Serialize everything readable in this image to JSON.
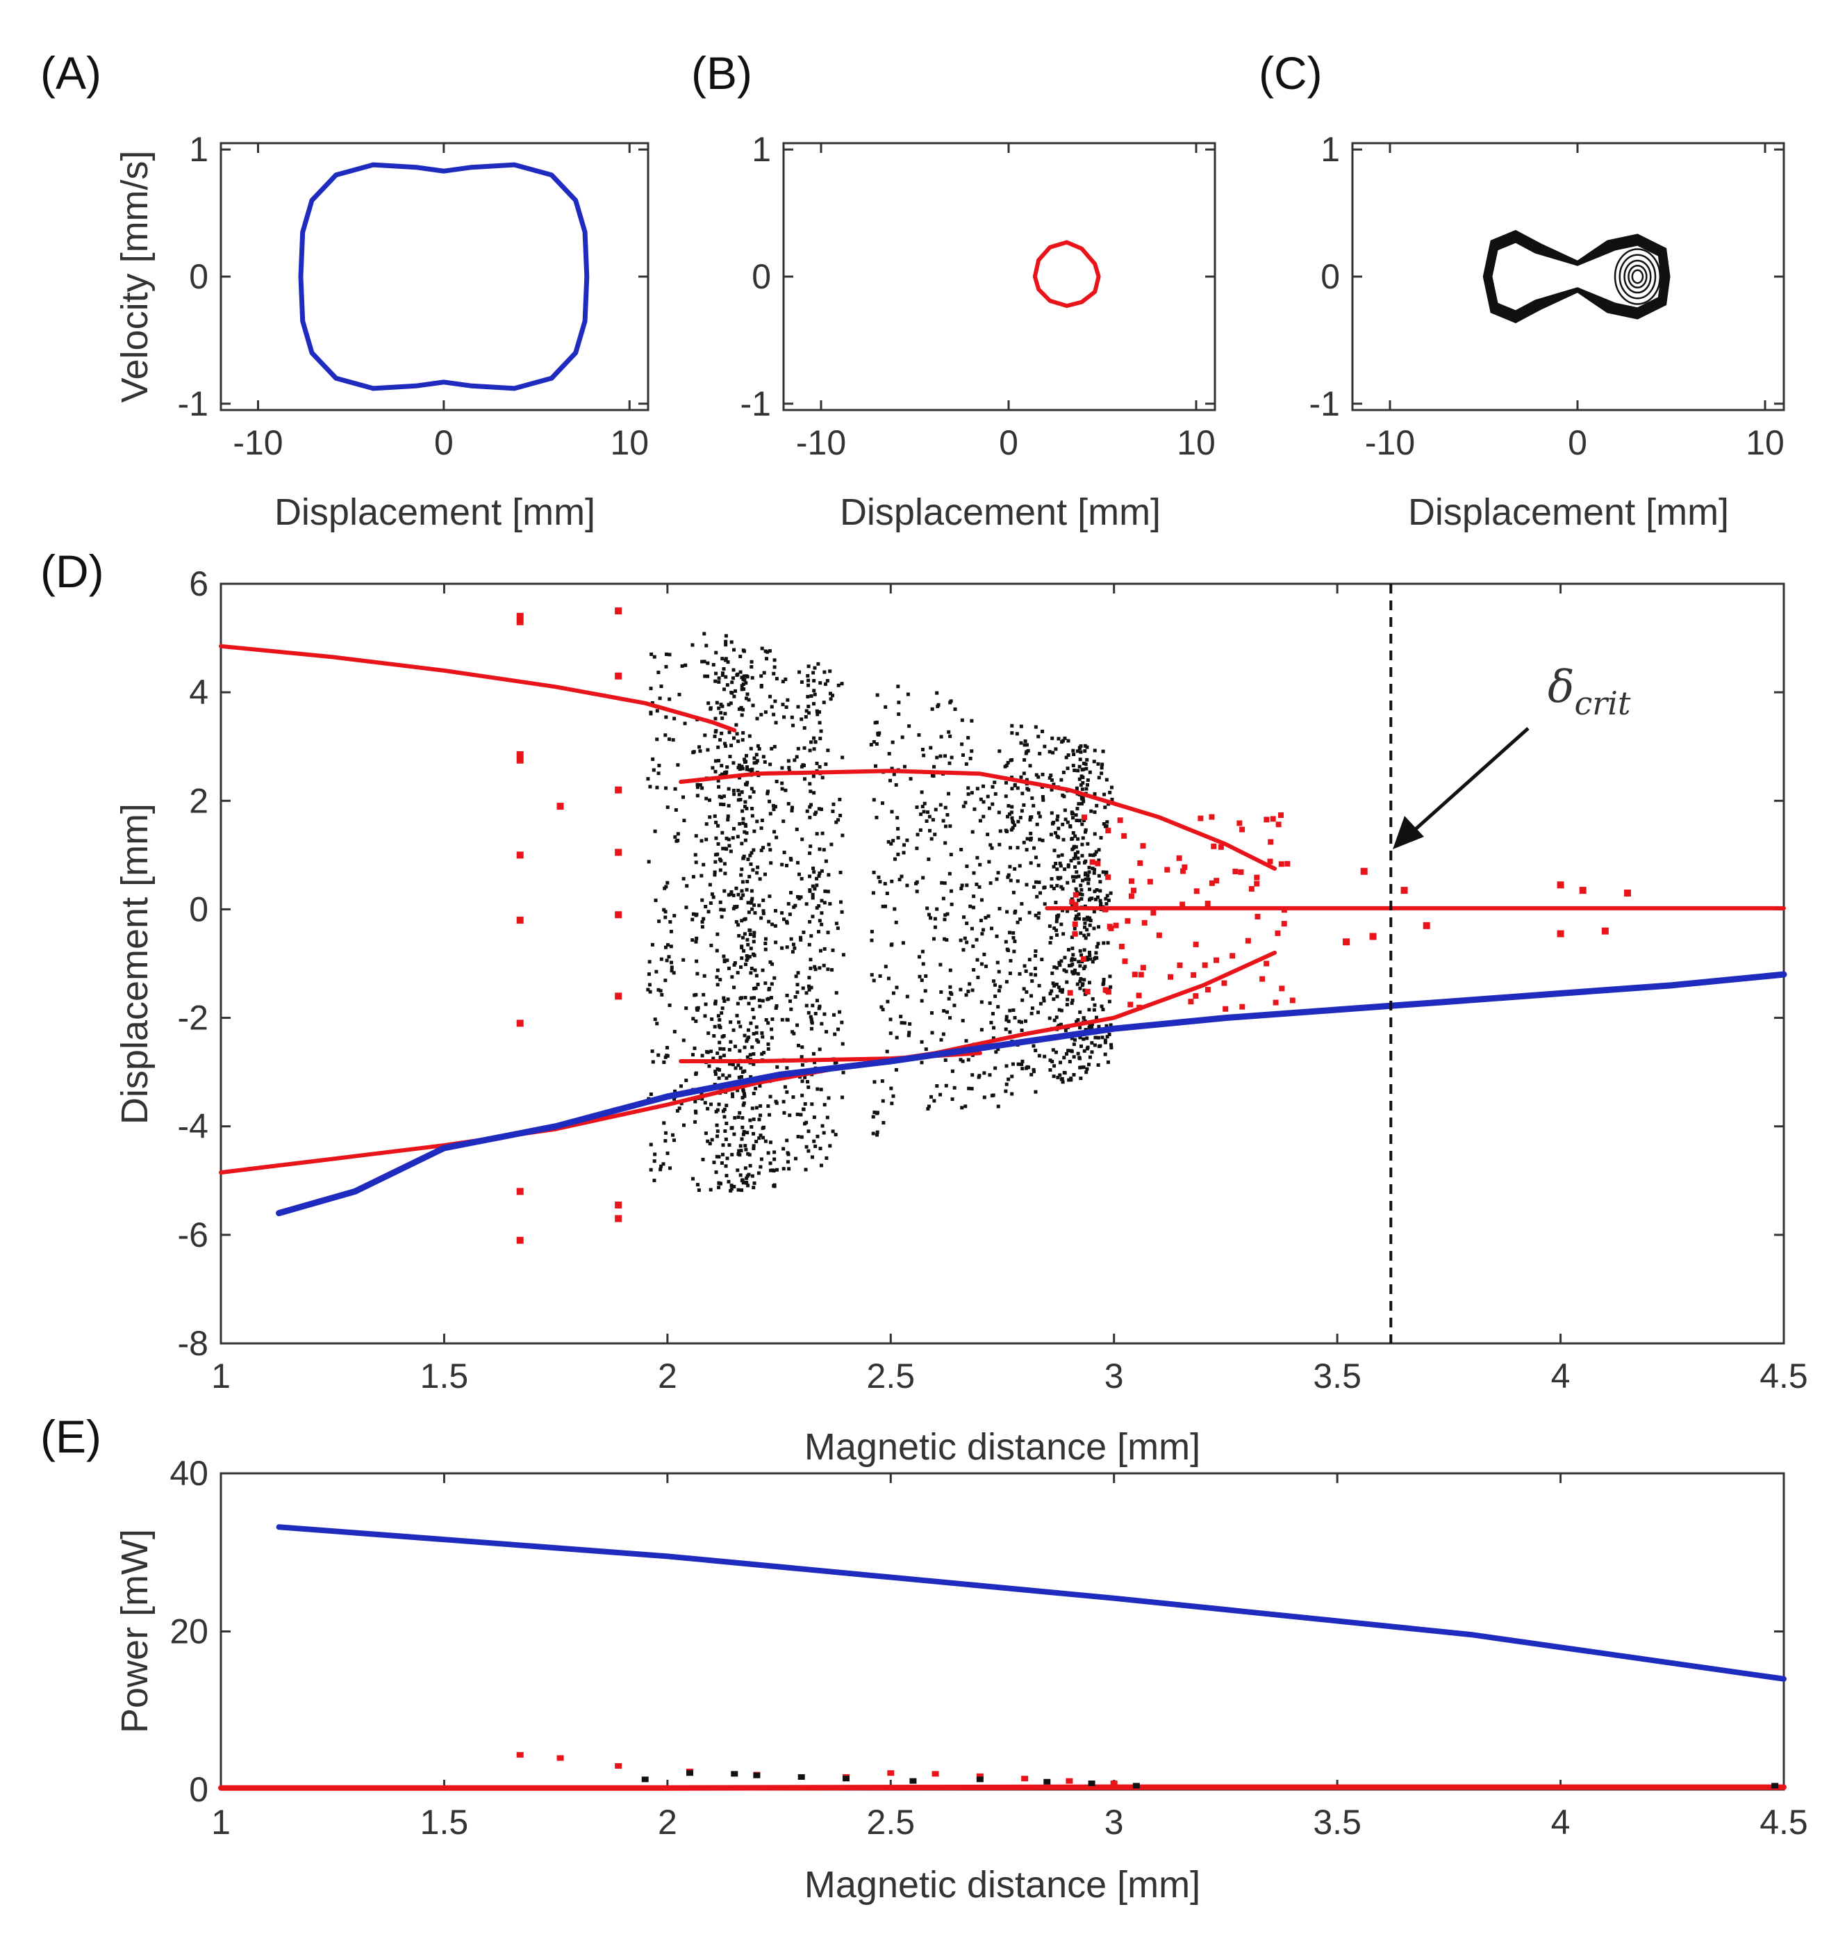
{
  "figure": {
    "annotation": {
      "symbol": "δ",
      "subscript": "crit",
      "x": 3.62
    }
  },
  "chart_data": [
    {
      "id": "A",
      "panel_label": "(A)",
      "type": "line",
      "xlabel": "Displacement [mm]",
      "ylabel": "Velocity [mm/s]",
      "xlim": [
        -12,
        11
      ],
      "ylim": [
        -1.05,
        1.05
      ],
      "xticks": [
        -10,
        0,
        10
      ],
      "yticks": [
        -1,
        0,
        1
      ],
      "xtick_labels": [
        "-10",
        "0",
        "10"
      ],
      "ytick_labels": [
        "-1",
        "0",
        "1"
      ],
      "series": [
        {
          "name": "orbit",
          "color": "#1f2bbf",
          "points": [
            [
              -7.7,
              0
            ],
            [
              -7.6,
              0.35
            ],
            [
              -7.1,
              0.6
            ],
            [
              -5.8,
              0.8
            ],
            [
              -3.8,
              0.88
            ],
            [
              -1.5,
              0.86
            ],
            [
              0,
              0.83
            ],
            [
              1.5,
              0.86
            ],
            [
              3.8,
              0.88
            ],
            [
              5.8,
              0.8
            ],
            [
              7.1,
              0.6
            ],
            [
              7.6,
              0.35
            ],
            [
              7.7,
              0
            ],
            [
              7.6,
              -0.35
            ],
            [
              7.1,
              -0.6
            ],
            [
              5.8,
              -0.8
            ],
            [
              3.8,
              -0.88
            ],
            [
              1.5,
              -0.86
            ],
            [
              0,
              -0.83
            ],
            [
              -1.5,
              -0.86
            ],
            [
              -3.8,
              -0.88
            ],
            [
              -5.8,
              -0.8
            ],
            [
              -7.1,
              -0.6
            ],
            [
              -7.6,
              -0.35
            ],
            [
              -7.7,
              0
            ]
          ]
        }
      ]
    },
    {
      "id": "B",
      "panel_label": "(B)",
      "type": "line",
      "xlabel": "Displacement [mm]",
      "ylabel": "",
      "xlim": [
        -12,
        11
      ],
      "ylim": [
        -1.05,
        1.05
      ],
      "xticks": [
        -10,
        0,
        10
      ],
      "yticks": [
        -1,
        0,
        1
      ],
      "xtick_labels": [
        "-10",
        "0",
        "10"
      ],
      "ytick_labels": [
        "-1",
        "0",
        "1"
      ],
      "series": [
        {
          "name": "orbit",
          "color": "#e8141a",
          "points": [
            [
              1.4,
              0
            ],
            [
              1.6,
              0.13
            ],
            [
              2.2,
              0.23
            ],
            [
              3.1,
              0.27
            ],
            [
              3.9,
              0.22
            ],
            [
              4.6,
              0.1
            ],
            [
              4.8,
              0
            ],
            [
              4.6,
              -0.12
            ],
            [
              3.9,
              -0.2
            ],
            [
              3.1,
              -0.23
            ],
            [
              2.2,
              -0.19
            ],
            [
              1.6,
              -0.1
            ],
            [
              1.4,
              0
            ]
          ]
        }
      ]
    },
    {
      "id": "C",
      "panel_label": "(C)",
      "type": "line",
      "xlabel": "Displacement [mm]",
      "ylabel": "",
      "xlim": [
        -12,
        11
      ],
      "ylim": [
        -1.05,
        1.05
      ],
      "xticks": [
        -10,
        0,
        10
      ],
      "yticks": [
        -1,
        0,
        1
      ],
      "xtick_labels": [
        "-10",
        "0",
        "10"
      ],
      "ytick_labels": [
        "-1",
        "0",
        "1"
      ],
      "series": [
        {
          "name": "chaotic attractor",
          "color": "#111111",
          "left_lobe_center": [
            -3.3,
            0
          ],
          "right_lobe_center": [
            3.2,
            0
          ]
        }
      ]
    },
    {
      "id": "D",
      "panel_label": "(D)",
      "type": "scatter",
      "xlabel": "Magnetic distance [mm]",
      "ylabel": "Displacement [mm]",
      "xlim": [
        1,
        4.5
      ],
      "ylim": [
        -8,
        6
      ],
      "xticks": [
        1,
        1.5,
        2,
        2.5,
        3,
        3.5,
        4,
        4.5
      ],
      "yticks": [
        -8,
        -6,
        -4,
        -2,
        0,
        2,
        4,
        6
      ],
      "xtick_labels": [
        "1",
        "1.5",
        "2",
        "2.5",
        "3",
        "3.5",
        "4",
        "4.5"
      ],
      "ytick_labels": [
        "-8",
        "-6",
        "-4",
        "-2",
        "0",
        "2",
        "4",
        "6"
      ],
      "series": [
        {
          "name": "red upper branch",
          "color": "#e8141a",
          "points": [
            [
              1,
              4.85
            ],
            [
              1.25,
              4.65
            ],
            [
              1.5,
              4.4
            ],
            [
              1.75,
              4.1
            ],
            [
              1.95,
              3.8
            ],
            [
              2.1,
              3.45
            ],
            [
              2.15,
              3.3
            ]
          ]
        },
        {
          "name": "red lower branch",
          "color": "#e8141a",
          "points": [
            [
              1,
              -4.85
            ],
            [
              1.25,
              -4.6
            ],
            [
              1.5,
              -4.35
            ],
            [
              1.75,
              -4.05
            ],
            [
              2,
              -3.6
            ],
            [
              2.2,
              -3.2
            ],
            [
              2.4,
              -2.9
            ],
            [
              2.6,
              -2.65
            ],
            [
              2.8,
              -2.3
            ],
            [
              3,
              -2
            ],
            [
              3.2,
              -1.4
            ],
            [
              3.36,
              -0.8
            ]
          ]
        },
        {
          "name": "red period-two upper",
          "color": "#e8141a",
          "points": [
            [
              2.03,
              2.35
            ],
            [
              2.2,
              2.5
            ],
            [
              2.5,
              2.55
            ],
            [
              2.7,
              2.5
            ],
            [
              2.9,
              2.2
            ],
            [
              3.1,
              1.7
            ],
            [
              3.25,
              1.2
            ],
            [
              3.36,
              0.75
            ]
          ]
        },
        {
          "name": "red period-two lower",
          "color": "#e8141a",
          "points": [
            [
              2.03,
              -2.8
            ],
            [
              2.2,
              -2.8
            ],
            [
              2.5,
              -2.75
            ],
            [
              2.7,
              -2.65
            ]
          ]
        },
        {
          "name": "red center branch",
          "color": "#e8141a",
          "points": [
            [
              2.85,
              0.02
            ],
            [
              3.2,
              0.02
            ],
            [
              3.5,
              0.02
            ],
            [
              4,
              0.02
            ],
            [
              4.5,
              0.02
            ]
          ]
        },
        {
          "name": "blue branch",
          "color": "#1f2bbf",
          "points": [
            [
              1.13,
              -5.6
            ],
            [
              1.3,
              -5.2
            ],
            [
              1.5,
              -4.4
            ],
            [
              1.75,
              -4.0
            ],
            [
              2,
              -3.45
            ],
            [
              2.25,
              -3.05
            ],
            [
              2.5,
              -2.8
            ],
            [
              2.75,
              -2.5
            ],
            [
              3,
              -2.2
            ],
            [
              3.25,
              -2.0
            ],
            [
              3.5,
              -1.85
            ],
            [
              3.75,
              -1.7
            ],
            [
              4,
              -1.55
            ],
            [
              4.25,
              -1.4
            ],
            [
              4.5,
              -1.2
            ]
          ]
        }
      ],
      "isolated_red_points": [
        [
          1.67,
          5.4
        ],
        [
          1.67,
          5.3
        ],
        [
          1.67,
          2.85
        ],
        [
          1.67,
          2.75
        ],
        [
          1.67,
          1.0
        ],
        [
          1.67,
          -0.2
        ],
        [
          1.67,
          -2.1
        ],
        [
          1.67,
          -5.2
        ],
        [
          1.67,
          -6.1
        ],
        [
          1.89,
          5.5
        ],
        [
          1.89,
          4.3
        ],
        [
          1.89,
          2.2
        ],
        [
          1.89,
          1.05
        ],
        [
          1.89,
          -0.1
        ],
        [
          1.89,
          -1.6
        ],
        [
          1.89,
          -5.45
        ],
        [
          1.89,
          -5.7
        ],
        [
          1.76,
          1.9
        ],
        [
          3.56,
          0.7
        ],
        [
          3.52,
          -0.6
        ],
        [
          3.58,
          -0.5
        ],
        [
          3.65,
          0.35
        ],
        [
          3.7,
          -0.3
        ],
        [
          4.0,
          0.45
        ],
        [
          4.0,
          -0.45
        ],
        [
          4.05,
          0.35
        ],
        [
          4.1,
          -0.4
        ],
        [
          4.15,
          0.3
        ]
      ],
      "dashed_vline_x": 3.62
    },
    {
      "id": "E",
      "panel_label": "(E)",
      "type": "scatter",
      "xlabel": "Magnetic distance [mm]",
      "ylabel": "Power [mW]",
      "xlim": [
        1,
        4.5
      ],
      "ylim": [
        0,
        40
      ],
      "xticks": [
        1,
        1.5,
        2,
        2.5,
        3,
        3.5,
        4,
        4.5
      ],
      "yticks": [
        0,
        20,
        40
      ],
      "xtick_labels": [
        "1",
        "1.5",
        "2",
        "2.5",
        "3",
        "3.5",
        "4",
        "4.5"
      ],
      "ytick_labels": [
        "0",
        "20",
        "40"
      ],
      "series": [
        {
          "name": "blue power",
          "color": "#1f2bbf",
          "points": [
            [
              1.13,
              33.2
            ],
            [
              2,
              29.5
            ],
            [
              3,
              24.2
            ],
            [
              3.8,
              19.6
            ],
            [
              4.5,
              14.0
            ]
          ]
        },
        {
          "name": "red baseline",
          "color": "#e8141a",
          "points": [
            [
              1,
              0.2
            ],
            [
              2,
              0.2
            ],
            [
              3,
              0.3
            ],
            [
              4,
              0.3
            ],
            [
              4.5,
              0.3
            ]
          ]
        },
        {
          "name": "red scattered",
          "color": "#e8141a",
          "points": [
            [
              1.67,
              4.3
            ],
            [
              1.76,
              3.9
            ],
            [
              1.89,
              2.9
            ],
            [
              2.05,
              2.2
            ],
            [
              2.2,
              1.8
            ],
            [
              2.4,
              1.5
            ],
            [
              2.5,
              2.0
            ],
            [
              2.6,
              1.9
            ],
            [
              2.7,
              1.6
            ],
            [
              2.8,
              1.3
            ],
            [
              2.9,
              1.0
            ],
            [
              3.0,
              0.7
            ]
          ]
        },
        {
          "name": "black scattered",
          "color": "#111111",
          "points": [
            [
              1.95,
              1.2
            ],
            [
              2.05,
              2.0
            ],
            [
              2.15,
              1.9
            ],
            [
              2.2,
              1.7
            ],
            [
              2.3,
              1.5
            ],
            [
              2.4,
              1.3
            ],
            [
              2.55,
              1.0
            ],
            [
              2.7,
              1.2
            ],
            [
              2.85,
              0.9
            ],
            [
              2.95,
              0.7
            ],
            [
              3.05,
              0.4
            ],
            [
              4.48,
              0.4
            ]
          ]
        }
      ]
    }
  ]
}
